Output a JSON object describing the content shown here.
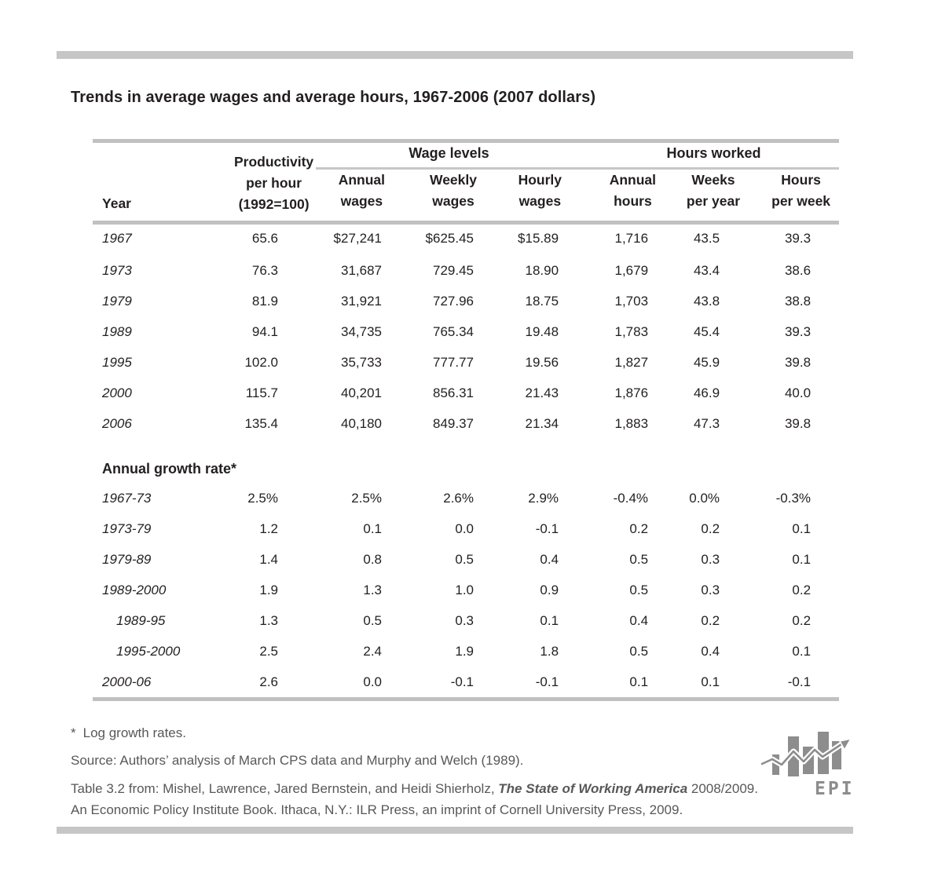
{
  "title": "Trends in average wages and average hours, 1967-2006 (2007 dollars)",
  "table": {
    "group_headers": [
      "Wage levels",
      "Hours worked"
    ],
    "col_headers": [
      "Year",
      "Productivity\nper hour\n(1992=100)",
      "Annual\nwages",
      "Weekly\nwages",
      "Hourly\nwages",
      "Annual\nhours",
      "Weeks\nper year",
      "Hours\nper week"
    ],
    "rows": [
      {
        "label": "1967",
        "values": [
          "65.6",
          "$27,241",
          "$625.45",
          "$15.89",
          "1,716",
          "43.5",
          "39.3"
        ]
      },
      {
        "label": "1973",
        "values": [
          "76.3",
          "31,687",
          "729.45",
          "18.90",
          "1,679",
          "43.4",
          "38.6"
        ]
      },
      {
        "label": "1979",
        "values": [
          "81.9",
          "31,921",
          "727.96",
          "18.75",
          "1,703",
          "43.8",
          "38.8"
        ]
      },
      {
        "label": "1989",
        "values": [
          "94.1",
          "34,735",
          "765.34",
          "19.48",
          "1,783",
          "45.4",
          "39.3"
        ]
      },
      {
        "label": "1995",
        "values": [
          "102.0",
          "35,733",
          "777.77",
          "19.56",
          "1,827",
          "45.9",
          "39.8"
        ]
      },
      {
        "label": "2000",
        "values": [
          "115.7",
          "40,201",
          "856.31",
          "21.43",
          "1,876",
          "46.9",
          "40.0"
        ]
      },
      {
        "label": "2006",
        "values": [
          "135.4",
          "40,180",
          "849.37",
          "21.34",
          "1,883",
          "47.3",
          "39.8"
        ]
      }
    ],
    "growth_section_label": "Annual growth rate*",
    "growth_rows": [
      {
        "label": "1967-73",
        "indent": false,
        "values": [
          "2.5%",
          "2.5%",
          "2.6%",
          "2.9%",
          "-0.4%",
          "0.0%",
          "-0.3%"
        ]
      },
      {
        "label": "1973-79",
        "indent": false,
        "values": [
          "1.2",
          "0.1",
          "0.0",
          "-0.1",
          "0.2",
          "0.2",
          "0.1"
        ]
      },
      {
        "label": "1979-89",
        "indent": false,
        "values": [
          "1.4",
          "0.8",
          "0.5",
          "0.4",
          "0.5",
          "0.3",
          "0.1"
        ]
      },
      {
        "label": "1989-2000",
        "indent": false,
        "values": [
          "1.9",
          "1.3",
          "1.0",
          "0.9",
          "0.5",
          "0.3",
          "0.2"
        ]
      },
      {
        "label": "1989-95",
        "indent": true,
        "values": [
          "1.3",
          "0.5",
          "0.3",
          "0.1",
          "0.4",
          "0.2",
          "0.2"
        ]
      },
      {
        "label": "1995-2000",
        "indent": true,
        "values": [
          "2.5",
          "2.4",
          "1.9",
          "1.8",
          "0.5",
          "0.4",
          "0.1"
        ]
      },
      {
        "label": "2000-06",
        "indent": false,
        "values": [
          "2.6",
          "0.0",
          "-0.1",
          "-0.1",
          "0.1",
          "0.1",
          "-0.1"
        ]
      }
    ]
  },
  "footnotes": {
    "asterisk_mark": "*",
    "asterisk_text": "Log growth rates.",
    "source": "Source: Authors’ analysis of March CPS data and Murphy and Welch (1989).",
    "citation_prefix": "Table 3.2 from: Mishel, Lawrence, Jared Bernstein, and Heidi Shierholz, ",
    "citation_title": "The State of Working America",
    "citation_line1_suffix": " 2008/2009.",
    "citation_line2": "An Economic Policy Institute Book. Ithaca, N.Y.: ILR Press, an imprint of Cornell University Press, 2009."
  },
  "logo": {
    "text": "EPI"
  },
  "colors": {
    "rule_gray": "#c0c0c0",
    "divider_bar_gray": "#c6c6c6",
    "text_black": "#231f20",
    "footer_gray": "#58585a",
    "logo_gray": "#8d8d8d"
  }
}
